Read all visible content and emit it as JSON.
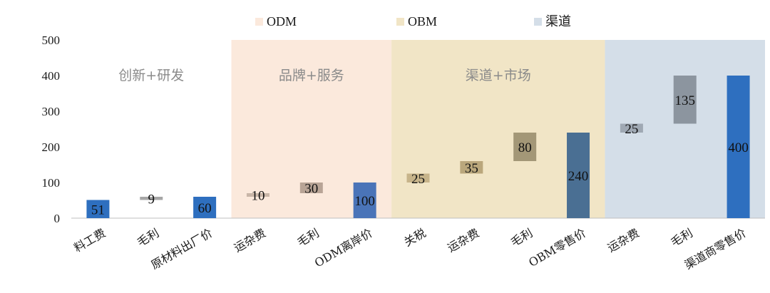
{
  "chart_data": {
    "type": "bar",
    "subtype": "waterfall",
    "ylim": [
      0,
      500
    ],
    "yticks": [
      0,
      100,
      200,
      300,
      400,
      500
    ],
    "grid": false,
    "legend_position": "top",
    "legend": [
      {
        "name": "ODM",
        "color": "#fbe9dc"
      },
      {
        "name": "OBM",
        "color": "#f1e5c6"
      },
      {
        "name": "渠道",
        "color": "#d4dee8"
      }
    ],
    "bands": [
      {
        "label": "创新+研发",
        "from_index": 0,
        "to_index": 2,
        "color": "#ffffff"
      },
      {
        "label": "品牌+服务",
        "from_index": 3,
        "to_index": 5,
        "color": "#fbe9dc"
      },
      {
        "label": "渠道+市场",
        "from_index": 6,
        "to_index": 9,
        "color": "#f1e5c6"
      },
      {
        "label": "",
        "from_index": 10,
        "to_index": 12,
        "color": "#d4dee8"
      }
    ],
    "categories": [
      "料工费",
      "毛利",
      "原材料出厂价",
      "运杂费",
      "毛利",
      "ODM离岸价",
      "关税",
      "运杂费",
      "毛利",
      "OBM零售价",
      "运杂费",
      "毛利",
      "渠道商零售价"
    ],
    "bars": [
      {
        "base": 0,
        "value": 51,
        "label": "51",
        "color": "#2e6fbf"
      },
      {
        "base": 51,
        "value": 9,
        "label": "9",
        "color": "#a6a6a6"
      },
      {
        "base": 0,
        "value": 60,
        "label": "60",
        "color": "#2e6fbf"
      },
      {
        "base": 60,
        "value": 10,
        "label": "10",
        "color": "#c9b6a8"
      },
      {
        "base": 70,
        "value": 30,
        "label": "30",
        "color": "#b8a496"
      },
      {
        "base": 0,
        "value": 100,
        "label": "100",
        "color": "#4a74b8"
      },
      {
        "base": 100,
        "value": 25,
        "label": "25",
        "color": "#c7b48a"
      },
      {
        "base": 125,
        "value": 35,
        "label": "35",
        "color": "#baa77c"
      },
      {
        "base": 160,
        "value": 80,
        "label": "80",
        "color": "#a39777"
      },
      {
        "base": 0,
        "value": 240,
        "label": "240",
        "color": "#4a6f93"
      },
      {
        "base": 240,
        "value": 25,
        "label": "25",
        "color": "#9fa8b3"
      },
      {
        "base": 265,
        "value": 135,
        "label": "135",
        "color": "#8c959f"
      },
      {
        "base": 0,
        "value": 400,
        "label": "400",
        "color": "#2e6fbf"
      }
    ]
  }
}
